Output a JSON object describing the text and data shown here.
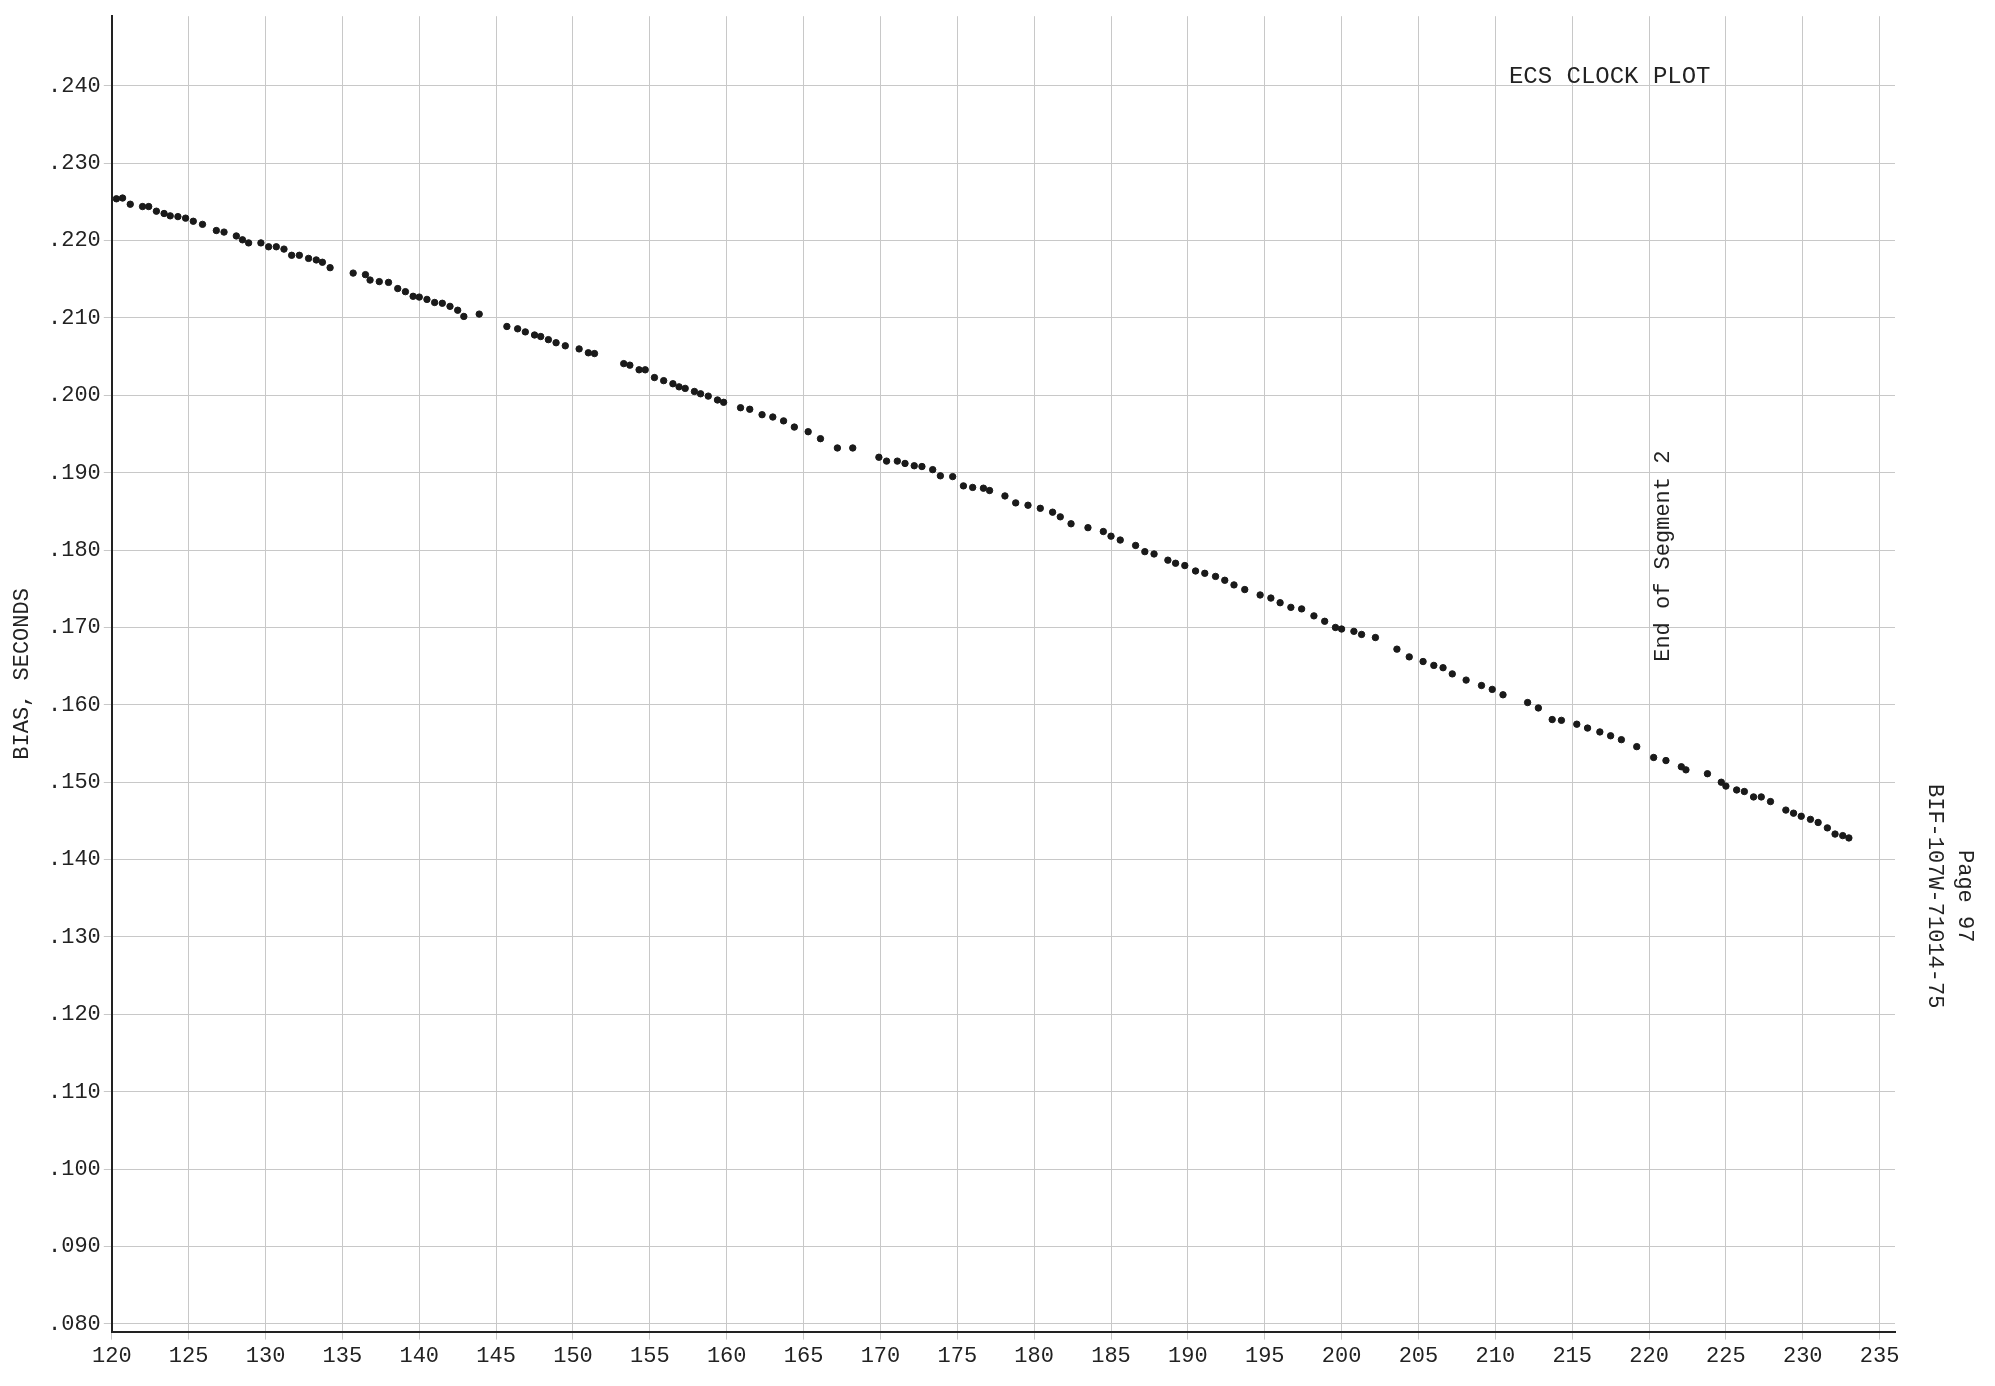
{
  "chart_data": {
    "type": "scatter",
    "title": "ECS CLOCK PLOT",
    "ylabel": "BIAS, SECONDS",
    "annotations": [
      "End of Segment 2",
      "BIF-107W-71014-75",
      "Page 97"
    ],
    "marker": "circle",
    "grid": true,
    "legend": false,
    "color": "#1a1a1a",
    "xlim": [
      120,
      236
    ],
    "xticks": [
      120,
      125,
      130,
      135,
      140,
      145,
      150,
      155,
      160,
      165,
      170,
      175,
      180,
      185,
      190,
      195,
      200,
      205,
      210,
      215,
      220,
      225,
      230,
      235
    ],
    "ylim": [
      0.079,
      0.249
    ],
    "yticks": [
      {
        "value": 0.08,
        "label": ".080"
      },
      {
        "value": 0.09,
        "label": ".090"
      },
      {
        "value": 0.1,
        "label": ".100"
      },
      {
        "value": 0.11,
        "label": ".110"
      },
      {
        "value": 0.12,
        "label": ".120"
      },
      {
        "value": 0.13,
        "label": ".130"
      },
      {
        "value": 0.14,
        "label": ".140"
      },
      {
        "value": 0.15,
        "label": ".150"
      },
      {
        "value": 0.16,
        "label": ".160"
      },
      {
        "value": 0.17,
        "label": ".170"
      },
      {
        "value": 0.18,
        "label": ".180"
      },
      {
        "value": 0.19,
        "label": ".190"
      },
      {
        "value": 0.2,
        "label": ".200"
      },
      {
        "value": 0.21,
        "label": ".210"
      },
      {
        "value": 0.22,
        "label": ".220"
      },
      {
        "value": 0.23,
        "label": ".230"
      },
      {
        "value": 0.24,
        "label": ".240"
      }
    ],
    "x": [
      120.3,
      120.7,
      121.2,
      122.0,
      122.4,
      122.9,
      123.4,
      123.8,
      124.3,
      124.8,
      125.3,
      125.9,
      126.8,
      127.3,
      128.1,
      128.5,
      128.9,
      129.7,
      130.2,
      130.7,
      131.2,
      131.7,
      132.2,
      132.8,
      133.3,
      133.7,
      134.2,
      135.7,
      136.5,
      136.8,
      137.4,
      138.0,
      138.6,
      139.1,
      139.6,
      140.0,
      140.5,
      141.0,
      141.5,
      142.0,
      142.5,
      142.9,
      143.9,
      145.7,
      146.4,
      146.9,
      147.5,
      147.9,
      148.4,
      148.9,
      149.5,
      150.4,
      151.0,
      151.4,
      153.3,
      153.7,
      154.3,
      154.7,
      155.3,
      155.9,
      156.5,
      156.9,
      157.3,
      157.9,
      158.3,
      158.8,
      159.4,
      159.8,
      160.9,
      161.5,
      162.3,
      163.0,
      163.7,
      164.4,
      165.3,
      166.1,
      167.2,
      168.2,
      169.9,
      170.4,
      171.1,
      171.6,
      172.2,
      172.7,
      173.4,
      173.9,
      174.7,
      175.4,
      176.0,
      176.7,
      177.1,
      178.1,
      178.8,
      179.6,
      180.4,
      181.2,
      181.7,
      182.4,
      183.5,
      184.5,
      185.0,
      185.6,
      186.6,
      187.2,
      187.8,
      188.7,
      189.2,
      189.8,
      190.5,
      191.1,
      191.8,
      192.4,
      193.0,
      193.7,
      194.7,
      195.4,
      196.0,
      196.7,
      197.4,
      198.2,
      198.9,
      199.6,
      200.0,
      200.8,
      201.3,
      202.2,
      203.6,
      204.4,
      205.3,
      206.0,
      206.6,
      207.2,
      208.1,
      209.1,
      209.8,
      210.5,
      212.1,
      212.8,
      213.7,
      214.3,
      215.3,
      216.0,
      216.8,
      217.5,
      218.2,
      219.2,
      220.3,
      221.1,
      222.1,
      222.4,
      223.8,
      224.7,
      225.0,
      225.7,
      226.2,
      226.8,
      227.3,
      227.9,
      228.9,
      229.4,
      229.9,
      230.5,
      231.0,
      231.6,
      232.1,
      232.6,
      233.0
    ],
    "values": [
      0.2254,
      0.2255,
      0.2247,
      0.2244,
      0.2244,
      0.2238,
      0.2235,
      0.2232,
      0.2231,
      0.2229,
      0.2225,
      0.2221,
      0.2213,
      0.2211,
      0.2206,
      0.2201,
      0.2197,
      0.2197,
      0.2192,
      0.2192,
      0.2189,
      0.2181,
      0.2181,
      0.2177,
      0.2175,
      0.2172,
      0.2165,
      0.2158,
      0.2156,
      0.2149,
      0.2147,
      0.2146,
      0.2138,
      0.2134,
      0.2128,
      0.2127,
      0.2124,
      0.212,
      0.2119,
      0.2115,
      0.211,
      0.2102,
      0.2105,
      0.2089,
      0.2086,
      0.2082,
      0.2078,
      0.2076,
      0.2072,
      0.2068,
      0.2064,
      0.206,
      0.2055,
      0.2054,
      0.2041,
      0.2039,
      0.2033,
      0.2033,
      0.2023,
      0.2019,
      0.2015,
      0.2011,
      0.2009,
      0.2005,
      0.2002,
      0.1999,
      0.1994,
      0.1991,
      0.1984,
      0.1982,
      0.1975,
      0.1972,
      0.1967,
      0.1959,
      0.1953,
      0.1944,
      0.1932,
      0.1932,
      0.192,
      0.1915,
      0.1915,
      0.1912,
      0.1909,
      0.1908,
      0.1904,
      0.1896,
      0.1895,
      0.1883,
      0.1881,
      0.188,
      0.1877,
      0.187,
      0.1861,
      0.1858,
      0.1854,
      0.1849,
      0.1843,
      0.1834,
      0.1829,
      0.1824,
      0.1818,
      0.1813,
      0.1806,
      0.1798,
      0.1795,
      0.1787,
      0.1783,
      0.178,
      0.1773,
      0.177,
      0.1766,
      0.1761,
      0.1755,
      0.1749,
      0.1742,
      0.1738,
      0.1732,
      0.1726,
      0.1724,
      0.1715,
      0.1708,
      0.17,
      0.1698,
      0.1695,
      0.1691,
      0.1687,
      0.1672,
      0.1662,
      0.1656,
      0.1651,
      0.1648,
      0.164,
      0.1632,
      0.1625,
      0.162,
      0.1613,
      0.1603,
      0.1596,
      0.1581,
      0.158,
      0.1575,
      0.157,
      0.1565,
      0.156,
      0.1555,
      0.1546,
      0.1532,
      0.1528,
      0.152,
      0.1516,
      0.1511,
      0.15,
      0.1495,
      0.149,
      0.1488,
      0.1481,
      0.1481,
      0.1475,
      0.1464,
      0.146,
      0.1456,
      0.1452,
      0.1448,
      0.1441,
      0.1433,
      0.1431,
      0.1428
    ]
  }
}
